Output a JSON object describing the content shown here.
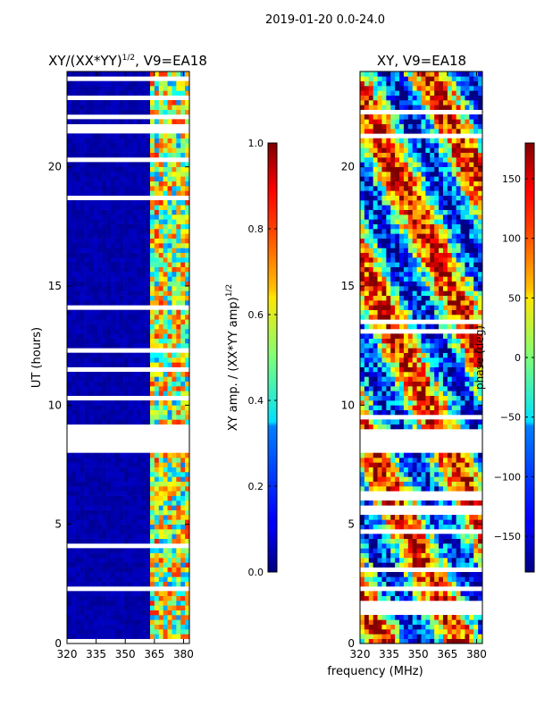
{
  "figure": {
    "suptitle": "2019-01-20 0.0-24.0",
    "xlabel": "frequency (MHz)"
  },
  "chart_data": [
    {
      "type": "heatmap",
      "title": "XY/(XX*YY)",
      "title_exponent": "1/2",
      "title_suffix": ", V9=EA18",
      "xlabel": "",
      "ylabel": "UT (hours)",
      "xlim": [
        320,
        383
      ],
      "ylim": [
        0,
        24
      ],
      "xticks": [
        320,
        335,
        350,
        365,
        380
      ],
      "yticks": [
        0,
        5,
        10,
        15,
        20
      ],
      "rfi_band_mhz": [
        362,
        383
      ],
      "no_data_gap_hours": [
        8.1,
        8.9
      ],
      "colorbar": {
        "label": "XY amp. / (XX*YY amp)",
        "label_exponent": "1/2",
        "range": [
          0.0,
          1.0
        ],
        "ticks": [
          "0.0",
          "0.2",
          "0.4",
          "0.6",
          "0.8",
          "1.0"
        ]
      }
    },
    {
      "type": "heatmap",
      "title": "XY, V9=EA18",
      "xlabel": "frequency (MHz)",
      "ylabel": "",
      "xlim": [
        320,
        383
      ],
      "ylim": [
        0,
        24
      ],
      "xticks": [
        320,
        335,
        350,
        365,
        380
      ],
      "yticks": [
        0,
        5,
        10,
        15,
        20
      ],
      "no_data_gap_hours": [
        8.1,
        8.9
      ],
      "colorbar": {
        "label": "phase (deg)",
        "range": [
          -180,
          180
        ],
        "ticks": [
          "−150",
          "−100",
          "−50",
          "0",
          "50",
          "100",
          "150"
        ]
      }
    }
  ]
}
